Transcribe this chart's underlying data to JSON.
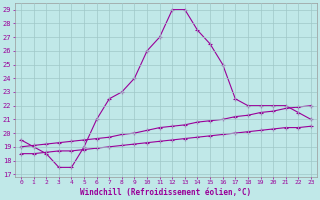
{
  "line1_x": [
    0,
    1,
    2,
    3,
    4,
    5,
    6,
    7,
    8,
    9,
    10,
    11,
    12,
    13,
    14,
    15,
    16,
    17,
    18,
    19,
    20,
    21,
    22,
    23
  ],
  "line1_y": [
    19.5,
    19.0,
    18.5,
    17.5,
    17.5,
    19.0,
    21.0,
    22.5,
    23.0,
    24.0,
    26.0,
    27.0,
    29.0,
    29.0,
    27.5,
    26.5,
    25.0,
    22.5,
    22.0,
    22.0,
    22.0,
    22.0,
    21.5,
    21.0
  ],
  "line2_x": [
    0,
    1,
    2,
    3,
    4,
    5,
    6,
    7,
    8,
    9,
    10,
    11,
    12,
    13,
    14,
    15,
    16,
    17,
    18,
    19,
    20,
    21,
    22,
    23
  ],
  "line2_y": [
    19.0,
    19.1,
    19.2,
    19.3,
    19.4,
    19.5,
    19.6,
    19.7,
    19.9,
    20.0,
    20.2,
    20.4,
    20.5,
    20.6,
    20.8,
    20.9,
    21.0,
    21.2,
    21.3,
    21.5,
    21.6,
    21.8,
    21.9,
    22.0
  ],
  "line3_x": [
    0,
    1,
    2,
    3,
    4,
    5,
    6,
    7,
    8,
    9,
    10,
    11,
    12,
    13,
    14,
    15,
    16,
    17,
    18,
    19,
    20,
    21,
    22,
    23
  ],
  "line3_y": [
    18.5,
    18.5,
    18.6,
    18.7,
    18.7,
    18.8,
    18.9,
    19.0,
    19.1,
    19.2,
    19.3,
    19.4,
    19.5,
    19.6,
    19.7,
    19.8,
    19.9,
    20.0,
    20.1,
    20.2,
    20.3,
    20.4,
    20.4,
    20.5
  ],
  "line_color": "#990099",
  "bg_color": "#c0e8e8",
  "grid_color": "#a0c8c8",
  "xlabel": "Windchill (Refroidissement éolien,°C)",
  "xlabel_color": "#990099",
  "ytick_min": 17,
  "ytick_max": 29,
  "xtick_min": 0,
  "xtick_max": 23,
  "title": ""
}
